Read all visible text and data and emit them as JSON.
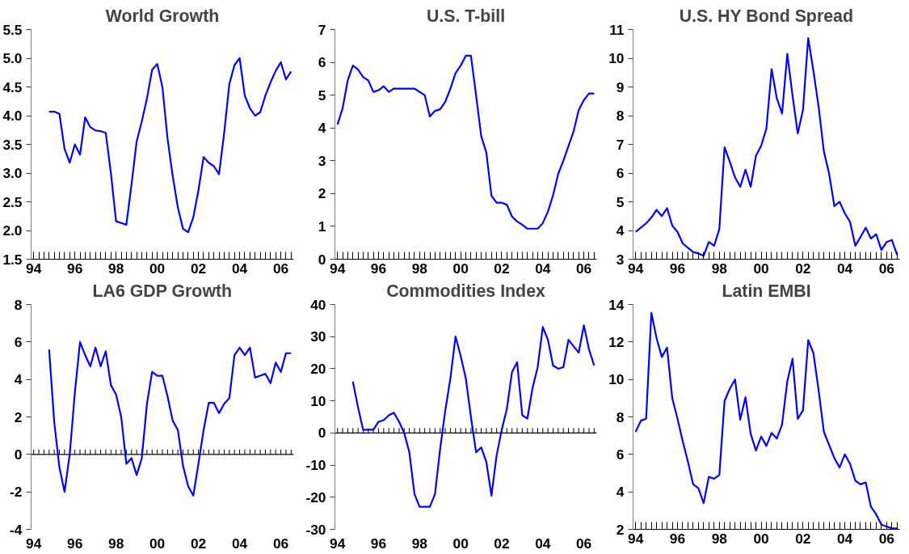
{
  "chart_data": [
    {
      "type": "line",
      "title": "World Growth",
      "categories": [
        "94",
        null,
        null,
        null,
        null,
        null,
        null,
        null,
        "96",
        null,
        null,
        null,
        null,
        null,
        null,
        null,
        "98",
        null,
        null,
        null,
        null,
        null,
        null,
        null,
        "00",
        null,
        null,
        null,
        null,
        null,
        null,
        null,
        "02",
        null,
        null,
        null,
        null,
        null,
        null,
        null,
        "04",
        null,
        null,
        null,
        null,
        null,
        null,
        null,
        "06",
        null,
        null
      ],
      "series": [
        {
          "color": "#0000ff",
          "values": [
            null,
            null,
            null,
            4.07,
            4.07,
            4.03,
            3.42,
            3.18,
            3.5,
            3.32,
            3.97,
            3.8,
            3.74,
            3.73,
            3.7,
            3.0,
            2.16,
            2.13,
            2.1,
            2.8,
            3.55,
            3.9,
            4.3,
            4.8,
            4.9,
            4.5,
            3.6,
            2.95,
            2.4,
            2.03,
            1.97,
            2.23,
            2.7,
            3.28,
            3.18,
            3.12,
            2.98,
            3.7,
            4.55,
            4.88,
            5.0,
            4.35,
            4.13,
            4.0,
            4.06,
            4.35,
            4.58,
            4.78,
            4.93,
            4.63,
            4.77
          ]
        }
      ],
      "ylim": [
        1.5,
        5.5
      ],
      "yticks": [
        1.5,
        {
          "value": 2,
          "label": "2.0"
        },
        2.5,
        {
          "value": 3,
          "label": "3.0"
        },
        3.5,
        {
          "value": 4,
          "label": "4.0"
        },
        4.5,
        {
          "value": 5,
          "label": "5.0"
        },
        5.5
      ]
    },
    {
      "type": "line",
      "title": "U.S. T-bill",
      "categories": [
        "94",
        null,
        null,
        null,
        null,
        null,
        null,
        null,
        "96",
        null,
        null,
        null,
        null,
        null,
        null,
        null,
        "98",
        null,
        null,
        null,
        null,
        null,
        null,
        null,
        "00",
        null,
        null,
        null,
        null,
        null,
        null,
        null,
        "02",
        null,
        null,
        null,
        null,
        null,
        null,
        null,
        "04",
        null,
        null,
        null,
        null,
        null,
        null,
        null,
        "06",
        null,
        null
      ],
      "series": [
        {
          "color": "#0000ff",
          "values": [
            4.1,
            4.6,
            5.45,
            5.9,
            5.78,
            5.55,
            5.45,
            5.1,
            5.15,
            5.27,
            5.1,
            5.2,
            5.2,
            5.2,
            5.2,
            5.2,
            5.1,
            5.0,
            4.35,
            4.52,
            4.57,
            4.8,
            5.2,
            5.67,
            5.9,
            6.2,
            6.2,
            5.0,
            3.75,
            3.25,
            1.93,
            1.72,
            1.72,
            1.66,
            1.3,
            1.15,
            1.05,
            0.93,
            0.93,
            0.93,
            1.1,
            1.45,
            1.95,
            2.6,
            3.0,
            3.45,
            3.9,
            4.55,
            4.85,
            5.05,
            5.05
          ]
        }
      ],
      "ylim": [
        0,
        7
      ],
      "yticks": [
        0,
        1,
        2,
        3,
        4,
        5,
        6,
        7
      ]
    },
    {
      "type": "line",
      "title": "U.S. HY Bond Spread",
      "categories": [
        "94",
        null,
        null,
        null,
        null,
        null,
        null,
        null,
        "96",
        null,
        null,
        null,
        null,
        null,
        null,
        null,
        "98",
        null,
        null,
        null,
        null,
        null,
        null,
        null,
        "00",
        null,
        null,
        null,
        null,
        null,
        null,
        null,
        "02",
        null,
        null,
        null,
        null,
        null,
        null,
        null,
        "04",
        null,
        null,
        null,
        null,
        null,
        null,
        null,
        "06",
        null,
        null
      ],
      "series": [
        {
          "color": "#0000ff",
          "values": [
            3.95,
            4.1,
            4.25,
            4.45,
            4.72,
            4.5,
            4.78,
            4.17,
            3.95,
            3.55,
            3.4,
            3.25,
            3.2,
            3.12,
            3.6,
            3.47,
            4.05,
            6.9,
            6.4,
            5.85,
            5.52,
            6.12,
            5.52,
            6.6,
            6.95,
            7.55,
            9.62,
            8.6,
            8.07,
            10.15,
            8.7,
            7.38,
            8.2,
            10.7,
            9.55,
            8.3,
            6.75,
            5.98,
            4.85,
            5.0,
            4.6,
            4.3,
            3.47,
            3.77,
            4.1,
            3.72,
            3.87,
            3.32,
            3.6,
            3.67,
            3.15
          ]
        }
      ],
      "ylim": [
        3,
        11
      ],
      "yticks": [
        3,
        4,
        5,
        6,
        7,
        8,
        9,
        10,
        11
      ]
    },
    {
      "type": "line",
      "title": "LA6 GDP Growth",
      "categories": [
        "94",
        null,
        null,
        null,
        null,
        null,
        null,
        null,
        "96",
        null,
        null,
        null,
        null,
        null,
        null,
        null,
        "98",
        null,
        null,
        null,
        null,
        null,
        null,
        null,
        "00",
        null,
        null,
        null,
        null,
        null,
        null,
        null,
        "02",
        null,
        null,
        null,
        null,
        null,
        null,
        null,
        "04",
        null,
        null,
        null,
        null,
        null,
        null,
        null,
        "06",
        null,
        null
      ],
      "series": [
        {
          "color": "#0000ff",
          "values": [
            null,
            null,
            null,
            5.6,
            1.7,
            -0.7,
            -2.0,
            0.0,
            3.3,
            6.0,
            5.3,
            4.7,
            5.7,
            4.7,
            5.5,
            3.7,
            3.2,
            2.0,
            -0.5,
            -0.2,
            -1.1,
            -0.2,
            2.7,
            4.4,
            4.2,
            4.2,
            3.1,
            1.8,
            1.3,
            -0.6,
            -1.7,
            -2.2,
            -0.5,
            1.3,
            2.75,
            2.75,
            2.2,
            2.7,
            3.0,
            5.3,
            5.7,
            5.3,
            5.7,
            4.1,
            4.2,
            4.3,
            3.8,
            4.9,
            4.4,
            5.4,
            5.4
          ]
        }
      ],
      "ylim": [
        -4,
        8
      ],
      "yticks": [
        -4,
        -2,
        0,
        2,
        4,
        6,
        8
      ]
    },
    {
      "type": "line",
      "title": "Commodities Index",
      "categories": [
        "94",
        null,
        null,
        null,
        null,
        null,
        null,
        null,
        "96",
        null,
        null,
        null,
        null,
        null,
        null,
        null,
        "98",
        null,
        null,
        null,
        null,
        null,
        null,
        null,
        "00",
        null,
        null,
        null,
        null,
        null,
        null,
        null,
        "02",
        null,
        null,
        null,
        null,
        null,
        null,
        null,
        "04",
        null,
        null,
        null,
        null,
        null,
        null,
        null,
        "06",
        null,
        null
      ],
      "series": [
        {
          "color": "#0000ff",
          "values": [
            null,
            null,
            null,
            16,
            8,
            1,
            1,
            1,
            3.5,
            4,
            5.5,
            6.3,
            3.5,
            0,
            -6,
            -19,
            -23,
            -23,
            -23,
            -19,
            -5,
            7,
            17,
            30,
            24,
            17,
            5,
            -6,
            -4.5,
            -9,
            -19.5,
            -7,
            1,
            7.5,
            19,
            22,
            5.5,
            4.5,
            14,
            20.5,
            33,
            29,
            21,
            20,
            20.5,
            29,
            27,
            25,
            33.5,
            26,
            21
          ]
        }
      ],
      "ylim": [
        -30,
        40
      ],
      "yticks": [
        -30,
        -20,
        -10,
        0,
        10,
        20,
        30,
        40
      ]
    },
    {
      "type": "line",
      "title": "Latin EMBI",
      "categories": [
        "94",
        null,
        null,
        null,
        null,
        null,
        null,
        null,
        "96",
        null,
        null,
        null,
        null,
        null,
        null,
        null,
        "98",
        null,
        null,
        null,
        null,
        null,
        null,
        null,
        "00",
        null,
        null,
        null,
        null,
        null,
        null,
        null,
        "02",
        null,
        null,
        null,
        null,
        null,
        null,
        null,
        "04",
        null,
        null,
        null,
        null,
        null,
        null,
        null,
        "06",
        null,
        null
      ],
      "series": [
        {
          "color": "#0000ff",
          "values": [
            7.2,
            7.8,
            7.9,
            13.55,
            12.2,
            11.2,
            11.7,
            9.0,
            7.9,
            6.7,
            5.6,
            4.4,
            4.2,
            3.4,
            4.8,
            4.7,
            4.9,
            8.85,
            9.5,
            10.0,
            7.85,
            9.05,
            7.1,
            6.2,
            6.95,
            6.45,
            7.15,
            6.85,
            7.6,
            9.9,
            11.1,
            7.9,
            8.35,
            12.1,
            11.4,
            9.4,
            7.2,
            6.5,
            5.8,
            5.3,
            6.0,
            5.5,
            4.6,
            4.4,
            4.5,
            3.2,
            2.8,
            2.25,
            2.15,
            2.05,
            2.05
          ]
        }
      ],
      "ylim": [
        2,
        14
      ],
      "yticks": [
        2,
        4,
        6,
        8,
        10,
        12,
        14
      ]
    }
  ]
}
